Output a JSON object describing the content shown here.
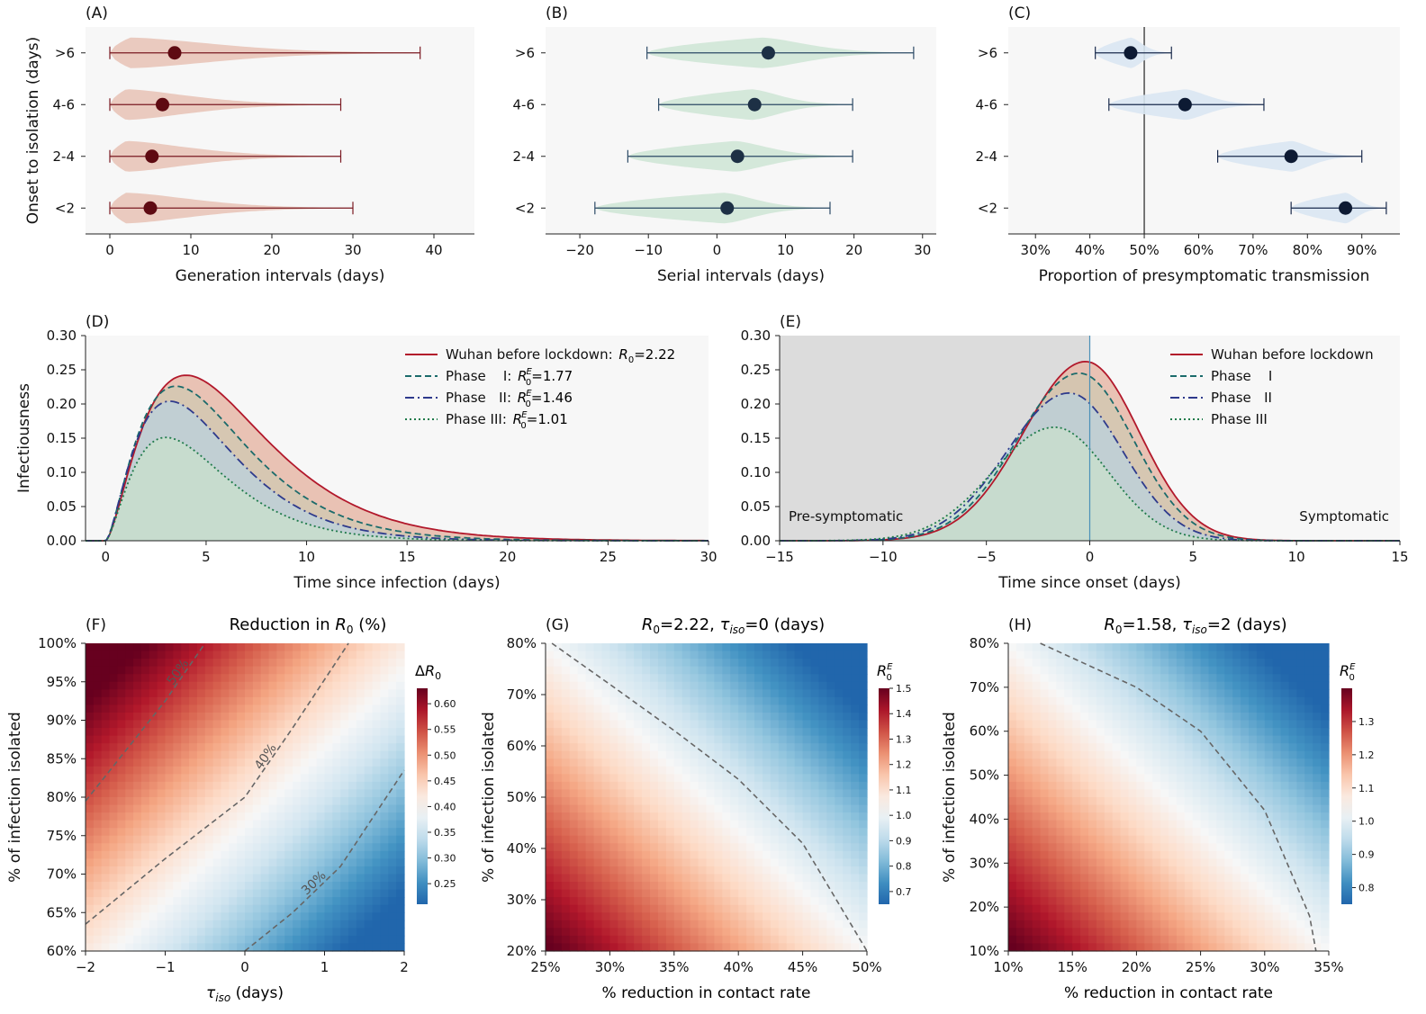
{
  "colors": {
    "panel_bg": "#f7f7f7",
    "gen_fill": "#e8c4b8",
    "gen_dot": "#5e0a12",
    "gen_line": "#7a1a22",
    "ser_fill": "#cfe5d6",
    "ser_dot": "#1d3045",
    "ser_line": "#2c4a66",
    "pre_fill": "#d9e6f2",
    "pre_dot": "#0d1a33",
    "pre_line": "#1a2b4d",
    "wuhan": "#b2182b",
    "phase1": "#1b6b6b",
    "phase2": "#2e3a8c",
    "phase3": "#1e7a4a",
    "fill_red": "#e6b8a8",
    "fill_blue": "#b3d3ea",
    "fill_green": "#cbe5cc",
    "shade": "#dcdcdc",
    "onset_line": "#4a90b8",
    "cmap": [
      "#67001f",
      "#b2182b",
      "#d6604d",
      "#f4a582",
      "#fddbc7",
      "#f7f7f7",
      "#d1e5f0",
      "#92c5de",
      "#4393c3",
      "#2166ac"
    ]
  },
  "chart_data": [
    {
      "id": "A",
      "type": "violin",
      "panel_label": "(A)",
      "xlabel": "Generation intervals (days)",
      "ylabel": "Onset to isolation (days)",
      "categories": [
        "<2",
        "2-4",
        "4-6",
        ">6"
      ],
      "xlim": [
        -3,
        45
      ],
      "xticks": [
        0,
        10,
        20,
        30,
        40
      ],
      "series": [
        {
          "values": [
            {
              "median": 5,
              "min": 0,
              "max": 30,
              "mode": 2
            },
            {
              "median": 5.2,
              "min": 0,
              "max": 28.5,
              "mode": 2
            },
            {
              "median": 6.5,
              "min": 0,
              "max": 28.5,
              "mode": 2
            },
            {
              "median": 8,
              "min": 0,
              "max": 38.3,
              "mode": 2.5
            }
          ]
        }
      ]
    },
    {
      "id": "B",
      "type": "violin",
      "panel_label": "(B)",
      "xlabel": "Serial intervals (days)",
      "categories": [
        "<2",
        "2-4",
        "4-6",
        ">6"
      ],
      "xlim": [
        -25,
        32
      ],
      "xticks": [
        -20,
        -10,
        0,
        10,
        20,
        30
      ],
      "xticklabels": [
        "−20",
        "−10",
        "0",
        "10",
        "20",
        "30"
      ],
      "series": [
        {
          "values": [
            {
              "median": 1.5,
              "min": -17.8,
              "max": 16.5,
              "mode": 1
            },
            {
              "median": 3,
              "min": -13,
              "max": 19.8,
              "mode": 2.5
            },
            {
              "median": 5.5,
              "min": -8.5,
              "max": 19.8,
              "mode": 5
            },
            {
              "median": 7.5,
              "min": -10.2,
              "max": 28.7,
              "mode": 6.5
            }
          ]
        }
      ]
    },
    {
      "id": "C",
      "type": "violin",
      "panel_label": "(C)",
      "xlabel": "Proportion of presymptomatic transmission",
      "categories": [
        "<2",
        "2-4",
        "4-6",
        ">6"
      ],
      "xlim": [
        0.25,
        0.97
      ],
      "xticks": [
        0.3,
        0.4,
        0.5,
        0.6,
        0.7,
        0.8,
        0.9
      ],
      "xticklabels": [
        "30%",
        "40%",
        "50%",
        "60%",
        "70%",
        "80%",
        "90%"
      ],
      "vline": 0.5,
      "series": [
        {
          "values": [
            {
              "median": 0.87,
              "min": 0.77,
              "max": 0.945,
              "mode": 0.87
            },
            {
              "median": 0.77,
              "min": 0.635,
              "max": 0.9,
              "mode": 0.77
            },
            {
              "median": 0.575,
              "min": 0.435,
              "max": 0.72,
              "mode": 0.575
            },
            {
              "median": 0.475,
              "min": 0.41,
              "max": 0.55,
              "mode": 0.475
            }
          ]
        }
      ]
    },
    {
      "id": "D",
      "type": "area",
      "panel_label": "(D)",
      "xlabel": "Time since infection (days)",
      "ylabel": "Infectiousness",
      "xlim": [
        -1,
        30
      ],
      "ylim": [
        0,
        0.3
      ],
      "xticks": [
        0,
        5,
        10,
        15,
        20,
        25,
        30
      ],
      "yticks": [
        0,
        0.05,
        0.1,
        0.15,
        0.2,
        0.25,
        0.3
      ],
      "yticklabels": [
        "0.00",
        "0.05",
        "0.10",
        "0.15",
        "0.20",
        "0.25",
        "0.30"
      ],
      "legend_position": "top-right",
      "series": [
        {
          "name": "Wuhan before lockdown",
          "legend_text": "Wuhan before lockdown: ",
          "legend_math": "R0=2.22",
          "peak_x": 4,
          "peak_y": 0.242
        },
        {
          "name": "Phase I",
          "legend_text": "Phase    I: ",
          "legend_math": "R0E=1.77",
          "peak_x": 3.5,
          "peak_y": 0.226
        },
        {
          "name": "Phase II",
          "legend_text": "Phase   II: ",
          "legend_math": "R0E=1.46",
          "peak_x": 3.2,
          "peak_y": 0.204
        },
        {
          "name": "Phase III",
          "legend_text": "Phase III: ",
          "legend_math": "R0E=1.01",
          "peak_x": 3,
          "peak_y": 0.151
        }
      ]
    },
    {
      "id": "E",
      "type": "area",
      "panel_label": "(E)",
      "xlabel": "Time since onset (days)",
      "xlim": [
        -15,
        15
      ],
      "ylim": [
        0,
        0.3
      ],
      "xticks": [
        -15,
        -10,
        -5,
        0,
        5,
        10,
        15
      ],
      "xticklabels": [
        "−15",
        "−10",
        "−5",
        "0",
        "5",
        "10",
        "15"
      ],
      "yticks": [
        0,
        0.05,
        0.1,
        0.15,
        0.2,
        0.25,
        0.3
      ],
      "yticklabels": [
        "0.00",
        "0.05",
        "0.10",
        "0.15",
        "0.20",
        "0.25",
        "0.30"
      ],
      "legend_position": "top-right",
      "annotations": [
        "Pre-symptomatic",
        "Symptomatic"
      ],
      "series": [
        {
          "name": "Wuhan before lockdown",
          "legend_text": "Wuhan before lockdown",
          "peak_x": -0.2,
          "peak_y": 0.262
        },
        {
          "name": "Phase I",
          "legend_text": "Phase    I",
          "peak_x": -0.5,
          "peak_y": 0.245
        },
        {
          "name": "Phase II",
          "legend_text": "Phase   II",
          "peak_x": -1,
          "peak_y": 0.216
        },
        {
          "name": "Phase III",
          "legend_text": "Phase III",
          "peak_x": -1.7,
          "peak_y": 0.166
        }
      ]
    },
    {
      "id": "F",
      "type": "heatmap",
      "panel_label": "(F)",
      "title": "Reduction in R0 (%)",
      "xlabel": "τiso (days)",
      "ylabel": "% of infection isolated",
      "xlim": [
        -2,
        2
      ],
      "ylim": [
        0.6,
        1.0
      ],
      "xticks": [
        -2,
        -1,
        0,
        1,
        2
      ],
      "xticklabels": [
        "−2",
        "−1",
        "0",
        "1",
        "2"
      ],
      "yticks": [
        0.6,
        0.65,
        0.7,
        0.75,
        0.8,
        0.85,
        0.9,
        0.95,
        1.0
      ],
      "yticklabels": [
        "60%",
        "65%",
        "70%",
        "75%",
        "80%",
        "85%",
        "90%",
        "95%",
        "100%"
      ],
      "colorbar": {
        "label": "ΔR0",
        "range": [
          0.21,
          0.63
        ],
        "ticks": [
          0.25,
          0.3,
          0.35,
          0.4,
          0.45,
          0.5,
          0.55,
          0.6
        ],
        "ticklabels": [
          "0.25",
          "0.30",
          "0.35",
          "0.40",
          "0.45",
          "0.50",
          "0.55",
          "0.60"
        ]
      },
      "contours": [
        {
          "label": "50%",
          "points": [
            [
              -2,
              0.795
            ],
            [
              -1.5,
              0.86
            ],
            [
              -1,
              0.925
            ],
            [
              -0.6,
              0.985
            ],
            [
              -0.5,
              1.0
            ]
          ]
        },
        {
          "label": "40%",
          "points": [
            [
              -2,
              0.635
            ],
            [
              -1,
              0.72
            ],
            [
              0,
              0.8
            ],
            [
              0.6,
              0.89
            ],
            [
              1.3,
              1.0
            ]
          ]
        },
        {
          "label": "30%",
          "points": [
            [
              0,
              0.6
            ],
            [
              0.6,
              0.65
            ],
            [
              1.2,
              0.71
            ],
            [
              2,
              0.835
            ]
          ]
        }
      ]
    },
    {
      "id": "G",
      "type": "heatmap",
      "panel_label": "(G)",
      "title": "R0=2.22, τiso=0 (days)",
      "xlabel": "% reduction in contact rate",
      "ylabel": "% of infection isolated",
      "xlim": [
        0.25,
        0.5
      ],
      "ylim": [
        0.2,
        0.8
      ],
      "xticks": [
        0.25,
        0.3,
        0.35,
        0.4,
        0.45,
        0.5
      ],
      "xticklabels": [
        "25%",
        "30%",
        "35%",
        "40%",
        "45%",
        "50%"
      ],
      "yticks": [
        0.2,
        0.3,
        0.4,
        0.5,
        0.6,
        0.7,
        0.8
      ],
      "yticklabels": [
        "20%",
        "30%",
        "40%",
        "50%",
        "60%",
        "70%",
        "80%"
      ],
      "colorbar": {
        "label": "R0E",
        "range": [
          0.65,
          1.5
        ],
        "ticks": [
          0.7,
          0.8,
          0.9,
          1.0,
          1.1,
          1.2,
          1.3,
          1.4,
          1.5
        ],
        "ticklabels": [
          "0.7",
          "0.8",
          "0.9",
          "1.0",
          "1.1",
          "1.2",
          "1.3",
          "1.4",
          "1.5"
        ]
      },
      "contours": [
        {
          "label": "",
          "points": [
            [
              0.255,
              0.8
            ],
            [
              0.3,
              0.72
            ],
            [
              0.35,
              0.63
            ],
            [
              0.4,
              0.535
            ],
            [
              0.45,
              0.41
            ],
            [
              0.5,
              0.2
            ]
          ]
        }
      ]
    },
    {
      "id": "H",
      "type": "heatmap",
      "panel_label": "(H)",
      "title": "R0=1.58, τiso=2 (days)",
      "xlabel": "% reduction in contact rate",
      "ylabel": "% of infection isolated",
      "xlim": [
        0.1,
        0.35
      ],
      "ylim": [
        0.1,
        0.8
      ],
      "xticks": [
        0.1,
        0.15,
        0.2,
        0.25,
        0.3,
        0.35
      ],
      "xticklabels": [
        "10%",
        "15%",
        "20%",
        "25%",
        "30%",
        "35%"
      ],
      "yticks": [
        0.1,
        0.2,
        0.3,
        0.4,
        0.5,
        0.6,
        0.7,
        0.8
      ],
      "yticklabels": [
        "10%",
        "20%",
        "30%",
        "40%",
        "50%",
        "60%",
        "70%",
        "80%"
      ],
      "colorbar": {
        "label": "R0E",
        "range": [
          0.75,
          1.4
        ],
        "ticks": [
          0.8,
          0.9,
          1.0,
          1.1,
          1.2,
          1.3
        ],
        "ticklabels": [
          "0.8",
          "0.9",
          "1.0",
          "1.1",
          "1.2",
          "1.3"
        ]
      },
      "contours": [
        {
          "label": "",
          "points": [
            [
              0.125,
              0.8
            ],
            [
              0.2,
              0.7
            ],
            [
              0.25,
              0.6
            ],
            [
              0.3,
              0.42
            ],
            [
              0.335,
              0.18
            ],
            [
              0.34,
              0.1
            ]
          ]
        }
      ]
    }
  ]
}
